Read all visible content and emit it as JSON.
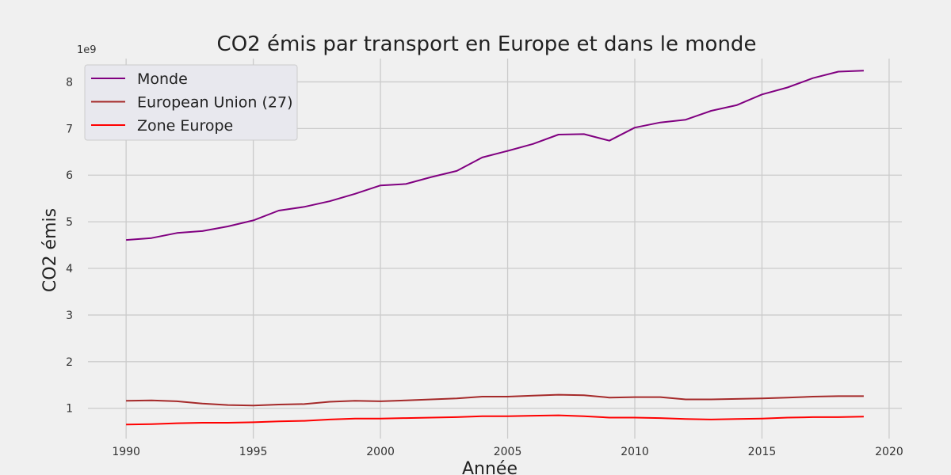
{
  "chart_data": {
    "type": "line",
    "title": "CO2 émis par transport en Europe et dans le monde",
    "xlabel": "Année",
    "ylabel": "CO2 émis",
    "y_offset_label": "1e9",
    "xlim": [
      1988.5,
      2020.5
    ],
    "ylim": [
      0.35,
      8.5
    ],
    "x_ticks": [
      1990,
      1995,
      2000,
      2005,
      2010,
      2015,
      2020
    ],
    "y_ticks": [
      1,
      2,
      3,
      4,
      5,
      6,
      7,
      8
    ],
    "grid": true,
    "legend_position": "top-left",
    "x": [
      1990,
      1991,
      1992,
      1993,
      1994,
      1995,
      1996,
      1997,
      1998,
      1999,
      2000,
      2001,
      2002,
      2003,
      2004,
      2005,
      2006,
      2007,
      2008,
      2009,
      2010,
      2011,
      2012,
      2013,
      2014,
      2015,
      2016,
      2017,
      2018,
      2019
    ],
    "series": [
      {
        "name": "Monde",
        "color": "#800080",
        "values": [
          4.61,
          4.65,
          4.76,
          4.8,
          4.9,
          5.03,
          5.24,
          5.32,
          5.44,
          5.6,
          5.78,
          5.81,
          5.96,
          6.09,
          6.38,
          6.52,
          6.67,
          6.87,
          6.88,
          6.74,
          7.02,
          7.13,
          7.19,
          7.38,
          7.5,
          7.73,
          7.88,
          8.08,
          8.22,
          8.24
        ]
      },
      {
        "name": "European Union (27)",
        "color": "#a52a2a",
        "values": [
          1.16,
          1.17,
          1.15,
          1.1,
          1.07,
          1.06,
          1.08,
          1.09,
          1.14,
          1.16,
          1.15,
          1.17,
          1.19,
          1.21,
          1.25,
          1.25,
          1.27,
          1.29,
          1.28,
          1.23,
          1.24,
          1.24,
          1.19,
          1.19,
          1.2,
          1.21,
          1.23,
          1.25,
          1.26,
          1.26
        ]
      },
      {
        "name": "Zone Europe",
        "color": "#ff0000",
        "values": [
          0.65,
          0.66,
          0.68,
          0.69,
          0.69,
          0.7,
          0.72,
          0.73,
          0.76,
          0.78,
          0.78,
          0.79,
          0.8,
          0.81,
          0.83,
          0.83,
          0.84,
          0.85,
          0.83,
          0.8,
          0.8,
          0.79,
          0.77,
          0.76,
          0.77,
          0.78,
          0.8,
          0.81,
          0.81,
          0.82
        ]
      }
    ]
  }
}
